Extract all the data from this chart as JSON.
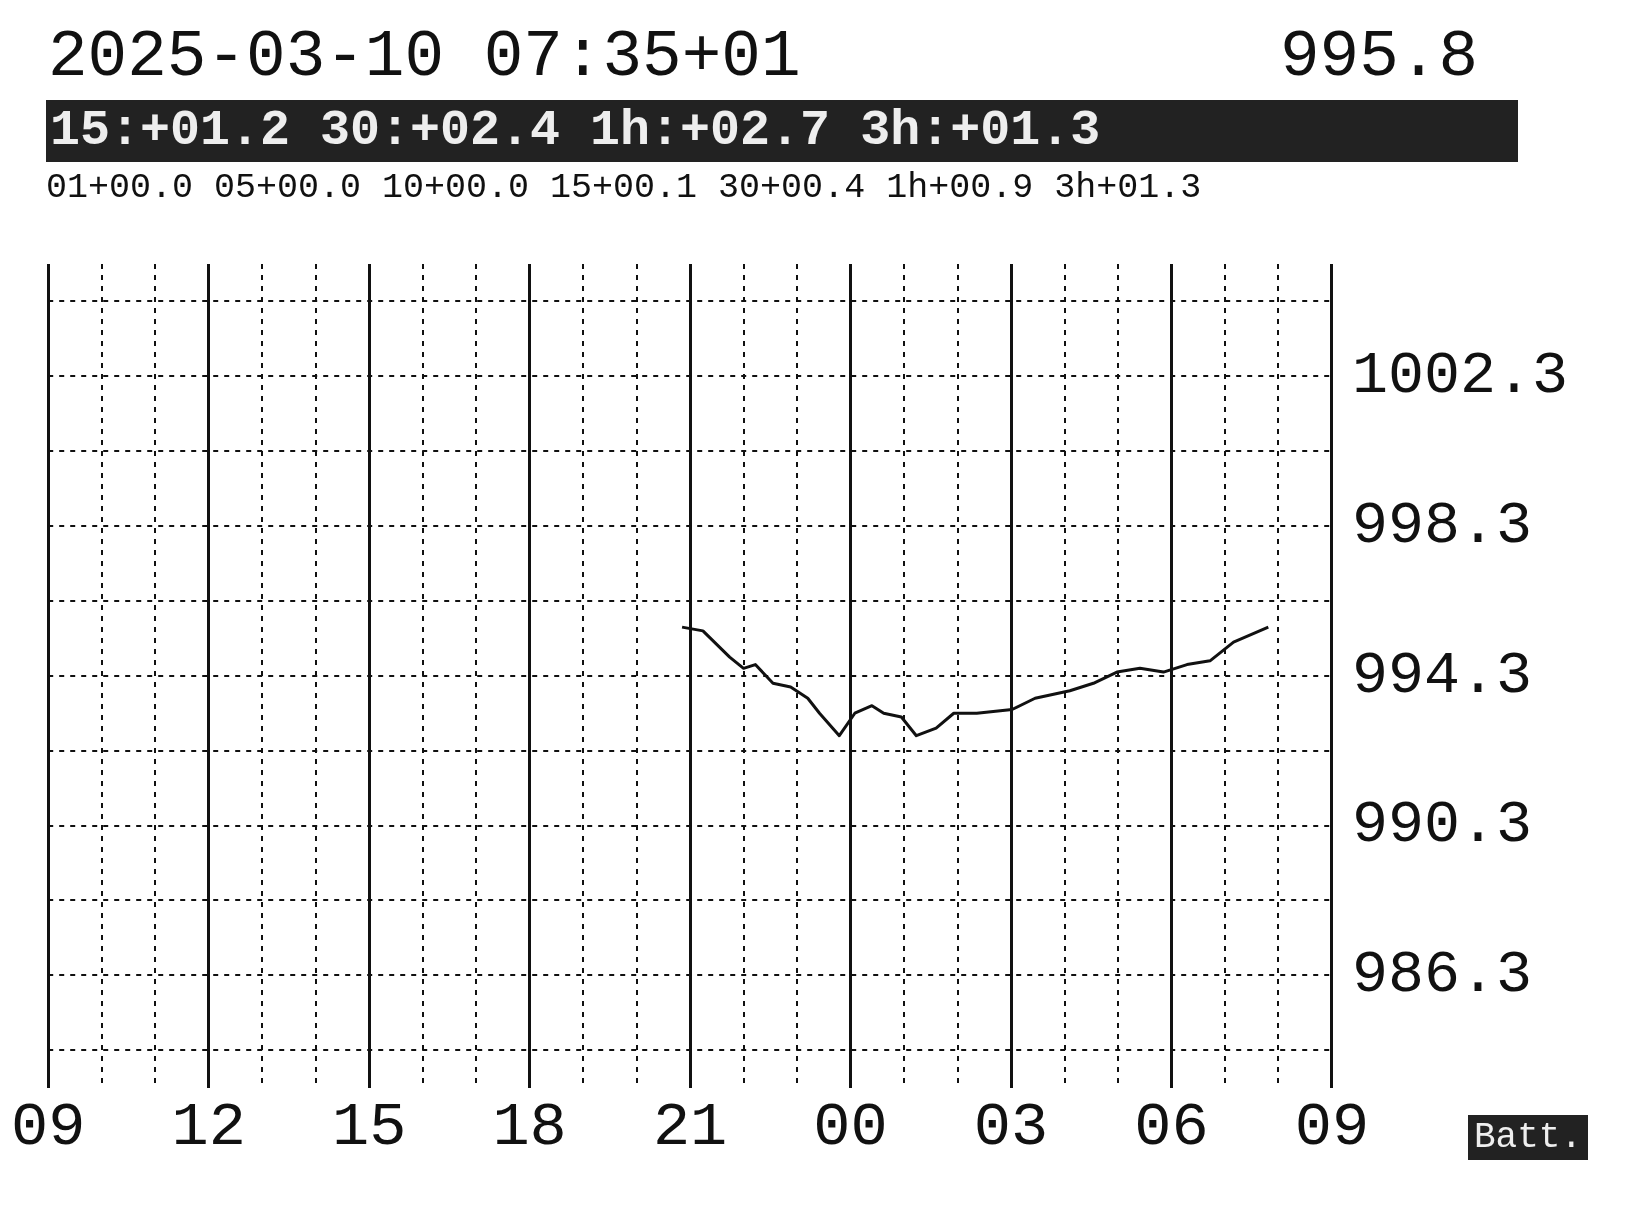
{
  "chart_data": {
    "type": "line",
    "title": "2025-03-10 07:35+01",
    "subtitle": "15:+01.2 30:+02.4 1h:+02.7 3h:+01.3",
    "annotations": [
      "995.8",
      "01+00.0 05+00.0 10+00.0 15+00.1 30+00.4 1h+00.9 3h+01.3",
      "Batt."
    ],
    "x": [
      20.85,
      21.24,
      21.74,
      22.0,
      22.22,
      22.55,
      22.88,
      23.2,
      23.42,
      23.79,
      24.08,
      24.4,
      24.62,
      24.95,
      25.23,
      25.6,
      25.93,
      26.36,
      27.02,
      27.45,
      28.1,
      28.54,
      28.98,
      29.41,
      29.85,
      30.29,
      30.72,
      31.16,
      31.81
    ],
    "series": [
      {
        "color": "#111111",
        "values": [
          995.6,
          995.5,
          994.8,
          994.5,
          994.6,
          994.1,
          994.0,
          993.7,
          993.3,
          992.7,
          993.3,
          993.5,
          993.3,
          993.2,
          992.7,
          992.9,
          993.3,
          993.3,
          993.4,
          993.7,
          993.9,
          994.1,
          994.4,
          994.5,
          994.4,
          994.6,
          994.7,
          995.2,
          995.6
        ]
      }
    ],
    "xlim": [
      9,
      33
    ],
    "xticks": [
      {
        "value": 9,
        "label": "09"
      },
      {
        "value": 10,
        "label": null
      },
      {
        "value": 11,
        "label": null
      },
      {
        "value": 12,
        "label": "12"
      },
      {
        "value": 13,
        "label": null
      },
      {
        "value": 14,
        "label": null
      },
      {
        "value": 15,
        "label": "15"
      },
      {
        "value": 16,
        "label": null
      },
      {
        "value": 17,
        "label": null
      },
      {
        "value": 18,
        "label": "18"
      },
      {
        "value": 19,
        "label": null
      },
      {
        "value": 20,
        "label": null
      },
      {
        "value": 21,
        "label": "21"
      },
      {
        "value": 22,
        "label": null
      },
      {
        "value": 23,
        "label": null
      },
      {
        "value": 24,
        "label": "00"
      },
      {
        "value": 25,
        "label": null
      },
      {
        "value": 26,
        "label": null
      },
      {
        "value": 27,
        "label": "03"
      },
      {
        "value": 28,
        "label": null
      },
      {
        "value": 29,
        "label": null
      },
      {
        "value": 30,
        "label": "06"
      },
      {
        "value": 31,
        "label": null
      },
      {
        "value": 32,
        "label": null
      },
      {
        "value": 33,
        "label": "09"
      }
    ],
    "ylim": [
      983.3,
      1005.3
    ],
    "yticks": [
      {
        "value": 984.3,
        "label": null
      },
      986.3,
      {
        "value": 988.3,
        "label": null
      },
      990.3,
      {
        "value": 992.3,
        "label": null
      },
      994.3,
      {
        "value": 996.3,
        "label": null
      },
      998.3,
      {
        "value": 1000.3,
        "label": null
      },
      1002.3,
      {
        "value": 1004.3,
        "label": null
      }
    ],
    "grid": true,
    "legend": false,
    "marker": "none",
    "line_style": "solid"
  }
}
